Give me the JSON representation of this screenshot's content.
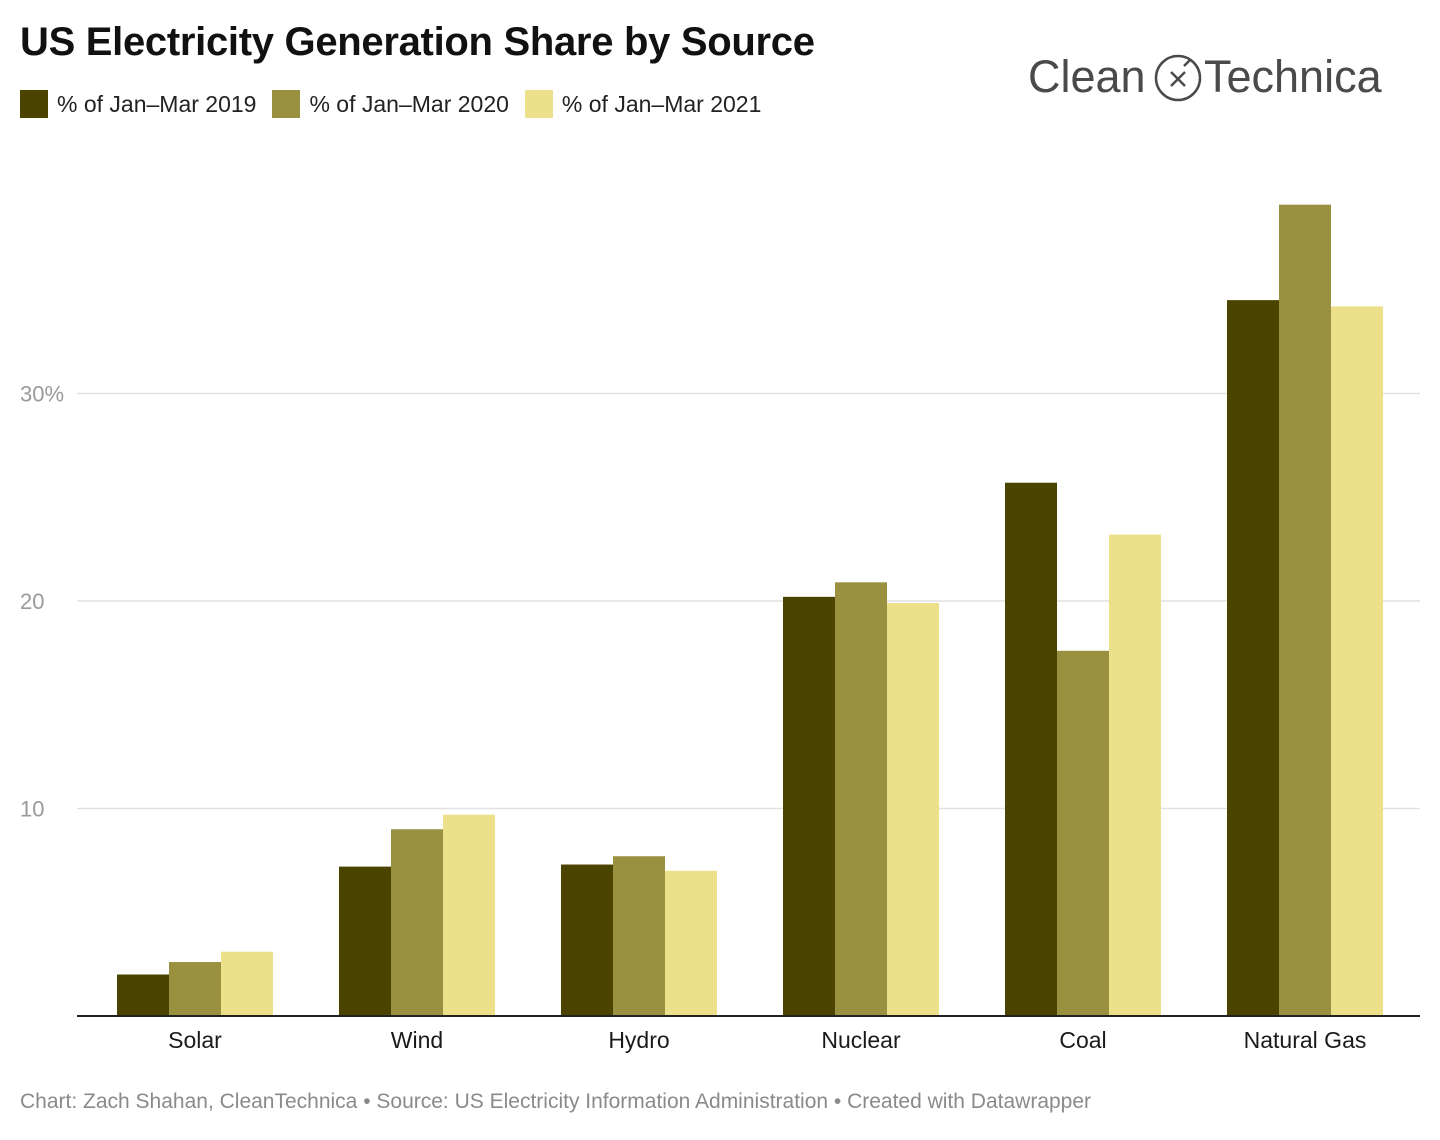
{
  "title": "US Electricity Generation Share by Source",
  "logo": {
    "part1": "Clean",
    "part2": "Technica"
  },
  "colors": {
    "s2019": "#4b4400",
    "s2020": "#9a9140",
    "s2021": "#ede08a"
  },
  "chart_data": {
    "type": "bar",
    "title": "US Electricity Generation Share by Source",
    "categories": [
      "Solar",
      "Wind",
      "Hydro",
      "Nuclear",
      "Coal",
      "Natural Gas"
    ],
    "series": [
      {
        "name": "% of Jan–Mar 2019",
        "color": "#4b4400",
        "values": [
          2.0,
          7.2,
          7.3,
          20.2,
          25.7,
          34.5
        ]
      },
      {
        "name": "% of Jan–Mar 2020",
        "color": "#9a9140",
        "values": [
          2.6,
          9.0,
          7.7,
          20.9,
          17.6,
          39.1
        ]
      },
      {
        "name": "% of Jan–Mar 2021",
        "color": "#ede08a",
        "values": [
          3.1,
          9.7,
          7.0,
          19.9,
          23.2,
          34.2
        ]
      }
    ],
    "yticks": [
      {
        "value": 10,
        "label": "10"
      },
      {
        "value": 20,
        "label": "20"
      },
      {
        "value": 30,
        "label": "30%"
      }
    ],
    "ylim": [
      0,
      42
    ],
    "grid": true,
    "legend": "top-left"
  },
  "footer": "Chart: Zach Shahan, CleanTechnica • Source: US Electricity Information Administration • Created with Datawrapper"
}
